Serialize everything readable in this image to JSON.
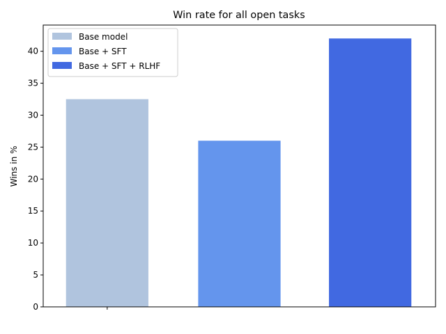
{
  "chart_data": {
    "type": "bar",
    "title": "Win rate for all open tasks",
    "xlabel": "",
    "ylabel": "Wins in %",
    "ylim": [
      0,
      44.1
    ],
    "yticks": [
      0,
      5,
      10,
      15,
      20,
      25,
      30,
      35,
      40
    ],
    "grid": false,
    "legend_position": "top-left",
    "series": [
      {
        "name": "Base model",
        "value": 32.5,
        "color": "#b0c4de"
      },
      {
        "name": "Base + SFT",
        "value": 26,
        "color": "#6495ed"
      },
      {
        "name": "Base + SFT + RLHF",
        "value": 42,
        "color": "#4169e1"
      }
    ]
  }
}
